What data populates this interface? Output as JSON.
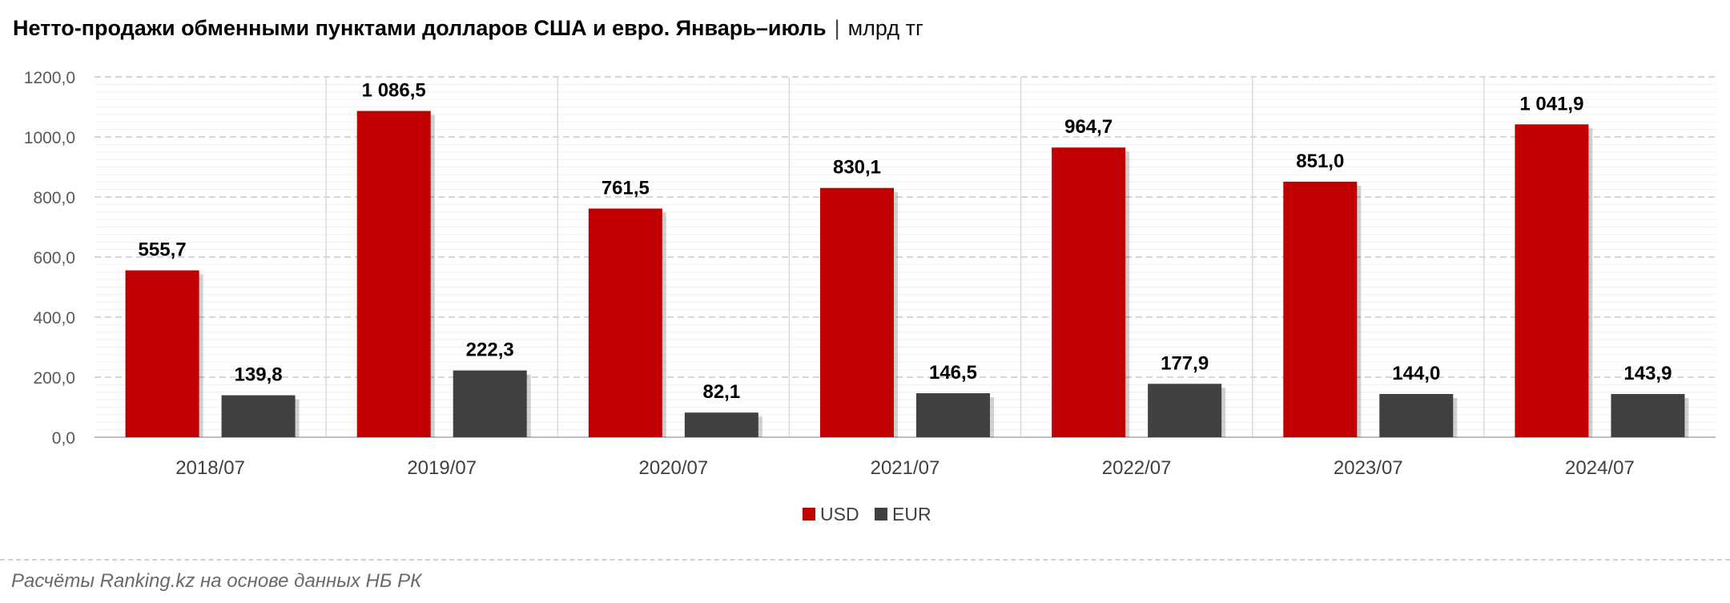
{
  "title": "Нетто-продажи обменными пунктами долларов США и евро. Январь–июль",
  "title_separator": "|",
  "unit": "млрд тг",
  "source": "Расчёты Ranking.kz на основе данных НБ РК",
  "chart_data": {
    "type": "bar",
    "categories": [
      "2018/07",
      "2019/07",
      "2020/07",
      "2021/07",
      "2022/07",
      "2023/07",
      "2024/07"
    ],
    "series": [
      {
        "name": "USD",
        "color": "#c00000",
        "values": [
          555.7,
          1086.5,
          761.5,
          830.1,
          964.7,
          851.0,
          1041.9
        ],
        "labels": [
          "555,7",
          "1 086,5",
          "761,5",
          "830,1",
          "964,7",
          "851,0",
          "1 041,9"
        ]
      },
      {
        "name": "EUR",
        "color": "#404040",
        "values": [
          139.8,
          222.3,
          82.1,
          146.5,
          177.9,
          144.0,
          143.9
        ],
        "labels": [
          "139,8",
          "222,3",
          "82,1",
          "146,5",
          "177,9",
          "144,0",
          "143,9"
        ]
      }
    ],
    "ylim": [
      0,
      1200
    ],
    "yticks": [
      0,
      200,
      400,
      600,
      800,
      1000,
      1200
    ],
    "ytick_labels": [
      "0,0",
      "200,0",
      "400,0",
      "600,0",
      "800,0",
      "1000,0",
      "1200,0"
    ],
    "grid": true,
    "legend_position": "bottom"
  }
}
